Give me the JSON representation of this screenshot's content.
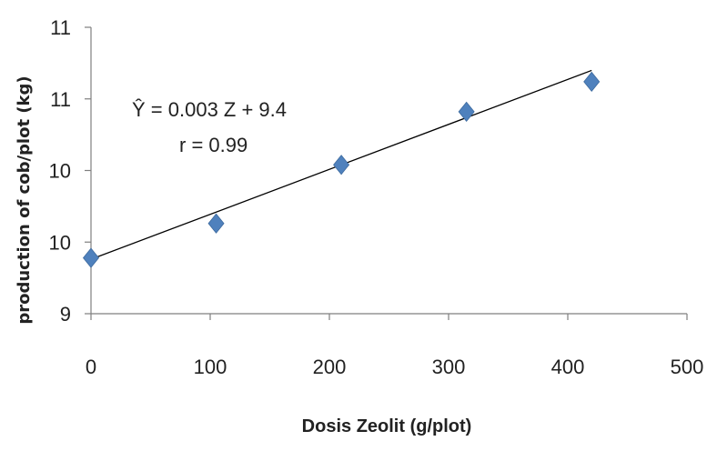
{
  "chart_data": {
    "type": "scatter",
    "xlabel": "Dosis Zeolit (g/plot)",
    "ylabel": "production of cob/plot (kg)",
    "xlim": [
      0,
      500
    ],
    "ylim": [
      9,
      11
    ],
    "x_ticks": [
      0,
      100,
      200,
      300,
      400,
      500
    ],
    "x_tick_labels": [
      "0",
      "100",
      "200",
      "300",
      "400",
      "500"
    ],
    "y_ticks": [
      9,
      9.5,
      10,
      10.5,
      11
    ],
    "y_tick_labels": [
      "9",
      "10",
      "10",
      "11",
      "11"
    ],
    "grid": false,
    "legend": "none",
    "series": [
      {
        "x": [
          0,
          105,
          210,
          315,
          420
        ],
        "y": [
          9.39,
          9.63,
          10.04,
          10.41,
          10.62
        ],
        "color": "#4F81BD",
        "marker": "diamond"
      }
    ],
    "trendline": {
      "slope": 0.00314,
      "intercept": 9.38,
      "x_range": [
        0,
        420
      ],
      "color": "#000000"
    },
    "annotations": [
      "Ŷ = 0.003  Z + 9.4",
      "r = 0.99"
    ]
  }
}
